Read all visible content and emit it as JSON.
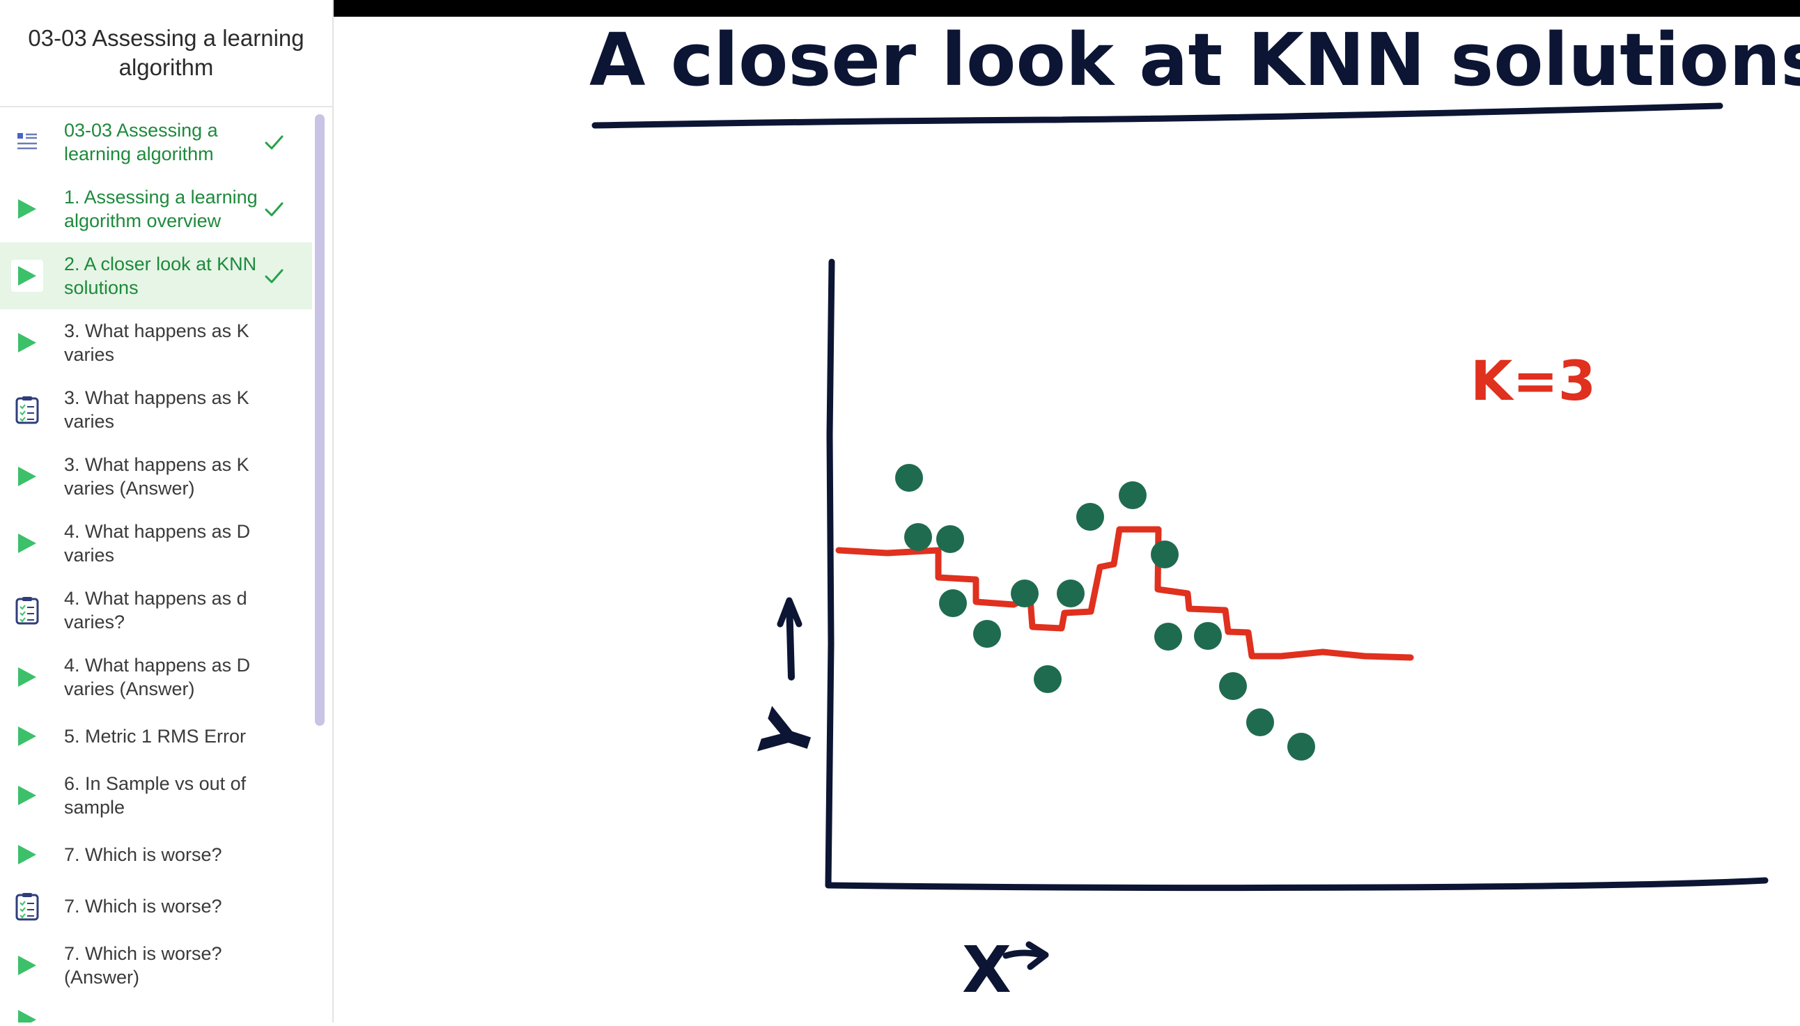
{
  "sidebar": {
    "title": "03-03 Assessing a learning algorithm",
    "items": [
      {
        "label": "03-03 Assessing a learning algorithm",
        "icon": "lesson-list-icon",
        "done": true,
        "active": false
      },
      {
        "label": "1. Assessing a learning algorithm overview",
        "icon": "play-icon",
        "done": true,
        "active": false
      },
      {
        "label": "2. A closer look at KNN solutions",
        "icon": "play-icon",
        "done": true,
        "active": true
      },
      {
        "label": "3. What happens as K varies",
        "icon": "play-icon",
        "done": false,
        "active": false
      },
      {
        "label": "3. What happens as K varies",
        "icon": "quiz-icon",
        "done": false,
        "active": false
      },
      {
        "label": "3. What happens as K varies (Answer)",
        "icon": "play-icon",
        "done": false,
        "active": false
      },
      {
        "label": "4. What happens as D varies",
        "icon": "play-icon",
        "done": false,
        "active": false
      },
      {
        "label": "4. What happens as d varies?",
        "icon": "quiz-icon",
        "done": false,
        "active": false
      },
      {
        "label": "4. What happens as D varies (Answer)",
        "icon": "play-icon",
        "done": false,
        "active": false
      },
      {
        "label": "5. Metric 1 RMS Error",
        "icon": "play-icon",
        "done": false,
        "active": false
      },
      {
        "label": "6. In Sample vs out of sample",
        "icon": "play-icon",
        "done": false,
        "active": false
      },
      {
        "label": "7. Which is worse?",
        "icon": "play-icon",
        "done": false,
        "active": false
      },
      {
        "label": "7. Which is worse?",
        "icon": "quiz-icon",
        "done": false,
        "active": false
      },
      {
        "label": "7. Which is worse? (Answer)",
        "icon": "play-icon",
        "done": false,
        "active": false
      },
      {
        "label": "",
        "icon": "play-icon",
        "done": false,
        "active": false
      }
    ]
  },
  "video": {
    "title": "A closer look at KNN solutions",
    "k_label": "K=3",
    "y_axis_label": "Y",
    "x_axis_label": "X",
    "colors": {
      "ink": "#0c1533",
      "fit_line": "#e0301e",
      "points": "#1f6b4f",
      "k_label": "#e0301e"
    }
  }
}
